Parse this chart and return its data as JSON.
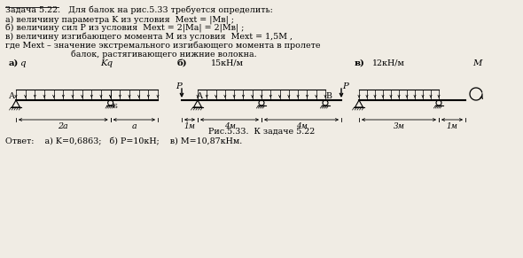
{
  "title_line1": "Задача 5.22.   Для балок на рис.5.33 требуется определить:",
  "title_line2": "а) величину параметра K из условия  Мext = |Мв| ;",
  "title_line3": "б) величину сил P из условия  Мext = 2|Мa| = 2|Мв| ;",
  "title_line4": "в) величину изгибающего момента М из условия  Мext = 1,5М ,",
  "title_line5": "где Мext – значение экстремального изгибающего момента в пролете",
  "title_line6": "балок, растягивающего нижние волокна.",
  "caption": "Рис.5.33.  К задаче 5.22",
  "answer": "Ответ:    а) K=0,6863;   б) P=10кН;    в) M=10,87кНм.",
  "bg_color": "#f0ece4",
  "text_color": "#000000"
}
